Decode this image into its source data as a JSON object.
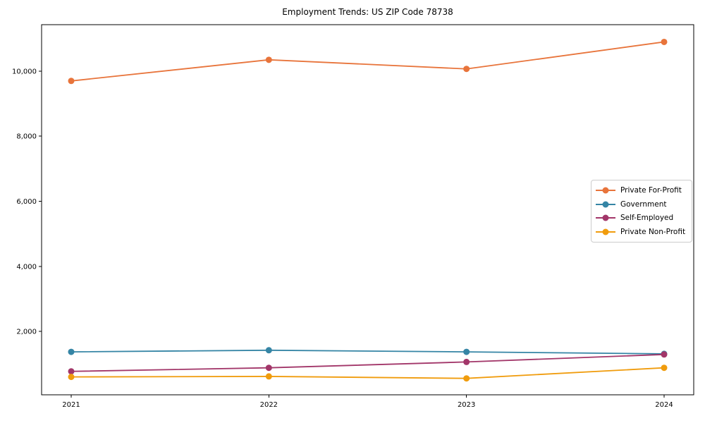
{
  "figure": {
    "background_color": "#ffffff",
    "axis_color": "#000000"
  },
  "chart_data": {
    "type": "line",
    "title": "Employment Trends: US ZIP Code 78738",
    "x": [
      2021,
      2022,
      2023,
      2024
    ],
    "x_tick_labels": [
      "2021",
      "2022",
      "2023",
      "2024"
    ],
    "y_ticks": [
      2000,
      4000,
      6000,
      8000,
      10000
    ],
    "y_tick_labels": [
      "2,000",
      "4,000",
      "6,000",
      "8,000",
      "10,000"
    ],
    "ylim": [
      50,
      11430
    ],
    "xlabel": "",
    "ylabel": "",
    "grid": false,
    "legend_position": "center right",
    "series": [
      {
        "name": "Private For-Profit",
        "color": "#e8743b",
        "values": [
          9700,
          10350,
          10070,
          10900
        ]
      },
      {
        "name": "Government",
        "color": "#3585a5",
        "values": [
          1370,
          1420,
          1370,
          1310
        ]
      },
      {
        "name": "Self-Employed",
        "color": "#a23669",
        "values": [
          770,
          880,
          1060,
          1290
        ]
      },
      {
        "name": "Private Non-Profit",
        "color": "#f09c0d",
        "values": [
          600,
          615,
          555,
          880
        ]
      }
    ]
  }
}
